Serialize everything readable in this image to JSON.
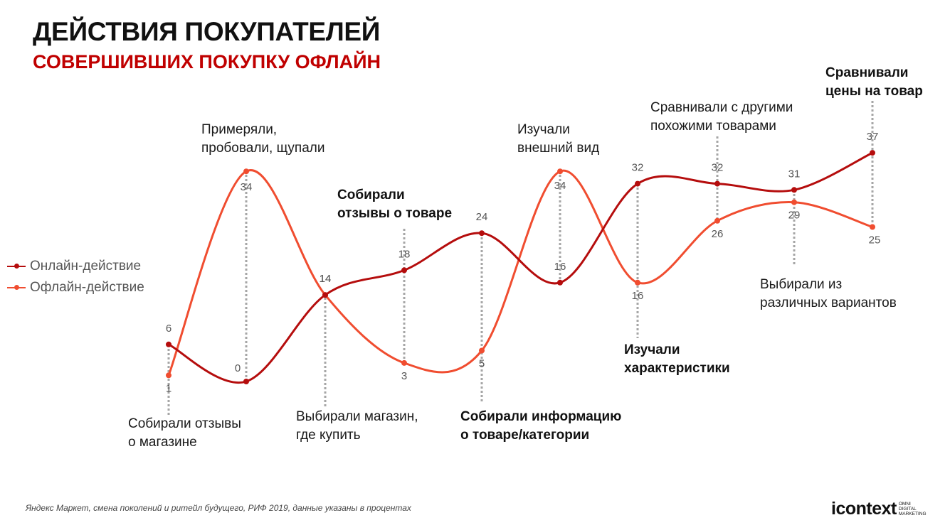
{
  "title": "ДЕЙСТВИЯ ПОКУПАТЕЛЕЙ",
  "subtitle": "СОВЕРШИВШИХ ПОКУПКУ ОФЛАЙН",
  "chart_data": {
    "type": "line",
    "categories": [
      "Собирали отзывы о магазине",
      "Примеряли, пробовали, щупали",
      "Выбирали магазин, где купить",
      "Собирали отзывы о товаре",
      "Собирали информацию о товаре/категории",
      "Изучали внешний вид",
      "Изучали характеристики",
      "Сравнивали с другими похожими товарами",
      "Выбирали из различных вариантов",
      "Сравнивали цены на товар"
    ],
    "series": [
      {
        "name": "Онлайн-действие",
        "color": "#b50d0d",
        "values": [
          6,
          0,
          14,
          18,
          24,
          16,
          32,
          32,
          31,
          37
        ]
      },
      {
        "name": "Офлайн-действие",
        "color": "#f04d30",
        "values": [
          1,
          34,
          14,
          3,
          5,
          34,
          16,
          26,
          29,
          25
        ]
      }
    ],
    "ylim": [
      0,
      40
    ],
    "grid": false,
    "legend": "left"
  },
  "legend": {
    "online": "Онлайн-действие",
    "offline": "Офлайн-действие"
  },
  "annotations": [
    {
      "text": "Собирали отзывы\nо магазине",
      "bold": false
    },
    {
      "text": "Примеряли,\nпробовали, щупали",
      "bold": false
    },
    {
      "text": "Выбирали магазин,\nгде купить",
      "bold": false
    },
    {
      "text": "Собирали\nотзывы о товаре",
      "bold": true
    },
    {
      "text": "Собирали информацию\nо товаре/категории",
      "bold": true
    },
    {
      "text": "Изучали\nвнешний вид",
      "bold": false
    },
    {
      "text": "Изучали\nхарактеристики",
      "bold": true
    },
    {
      "text": "Сравнивали с другими\nпохожими товарами",
      "bold": false
    },
    {
      "text": "Выбирали из\nразличных вариантов",
      "bold": false
    },
    {
      "text": "Сравнивали\nцены на товар",
      "bold": true
    }
  ],
  "source": "Яндекс Маркет, смена поколений и ритейл будущего, РИФ 2019, данные указаны в процентах",
  "logo": {
    "word": "icontext",
    "tagline": "OMNI\nDIGITAL\nMARKETING"
  }
}
